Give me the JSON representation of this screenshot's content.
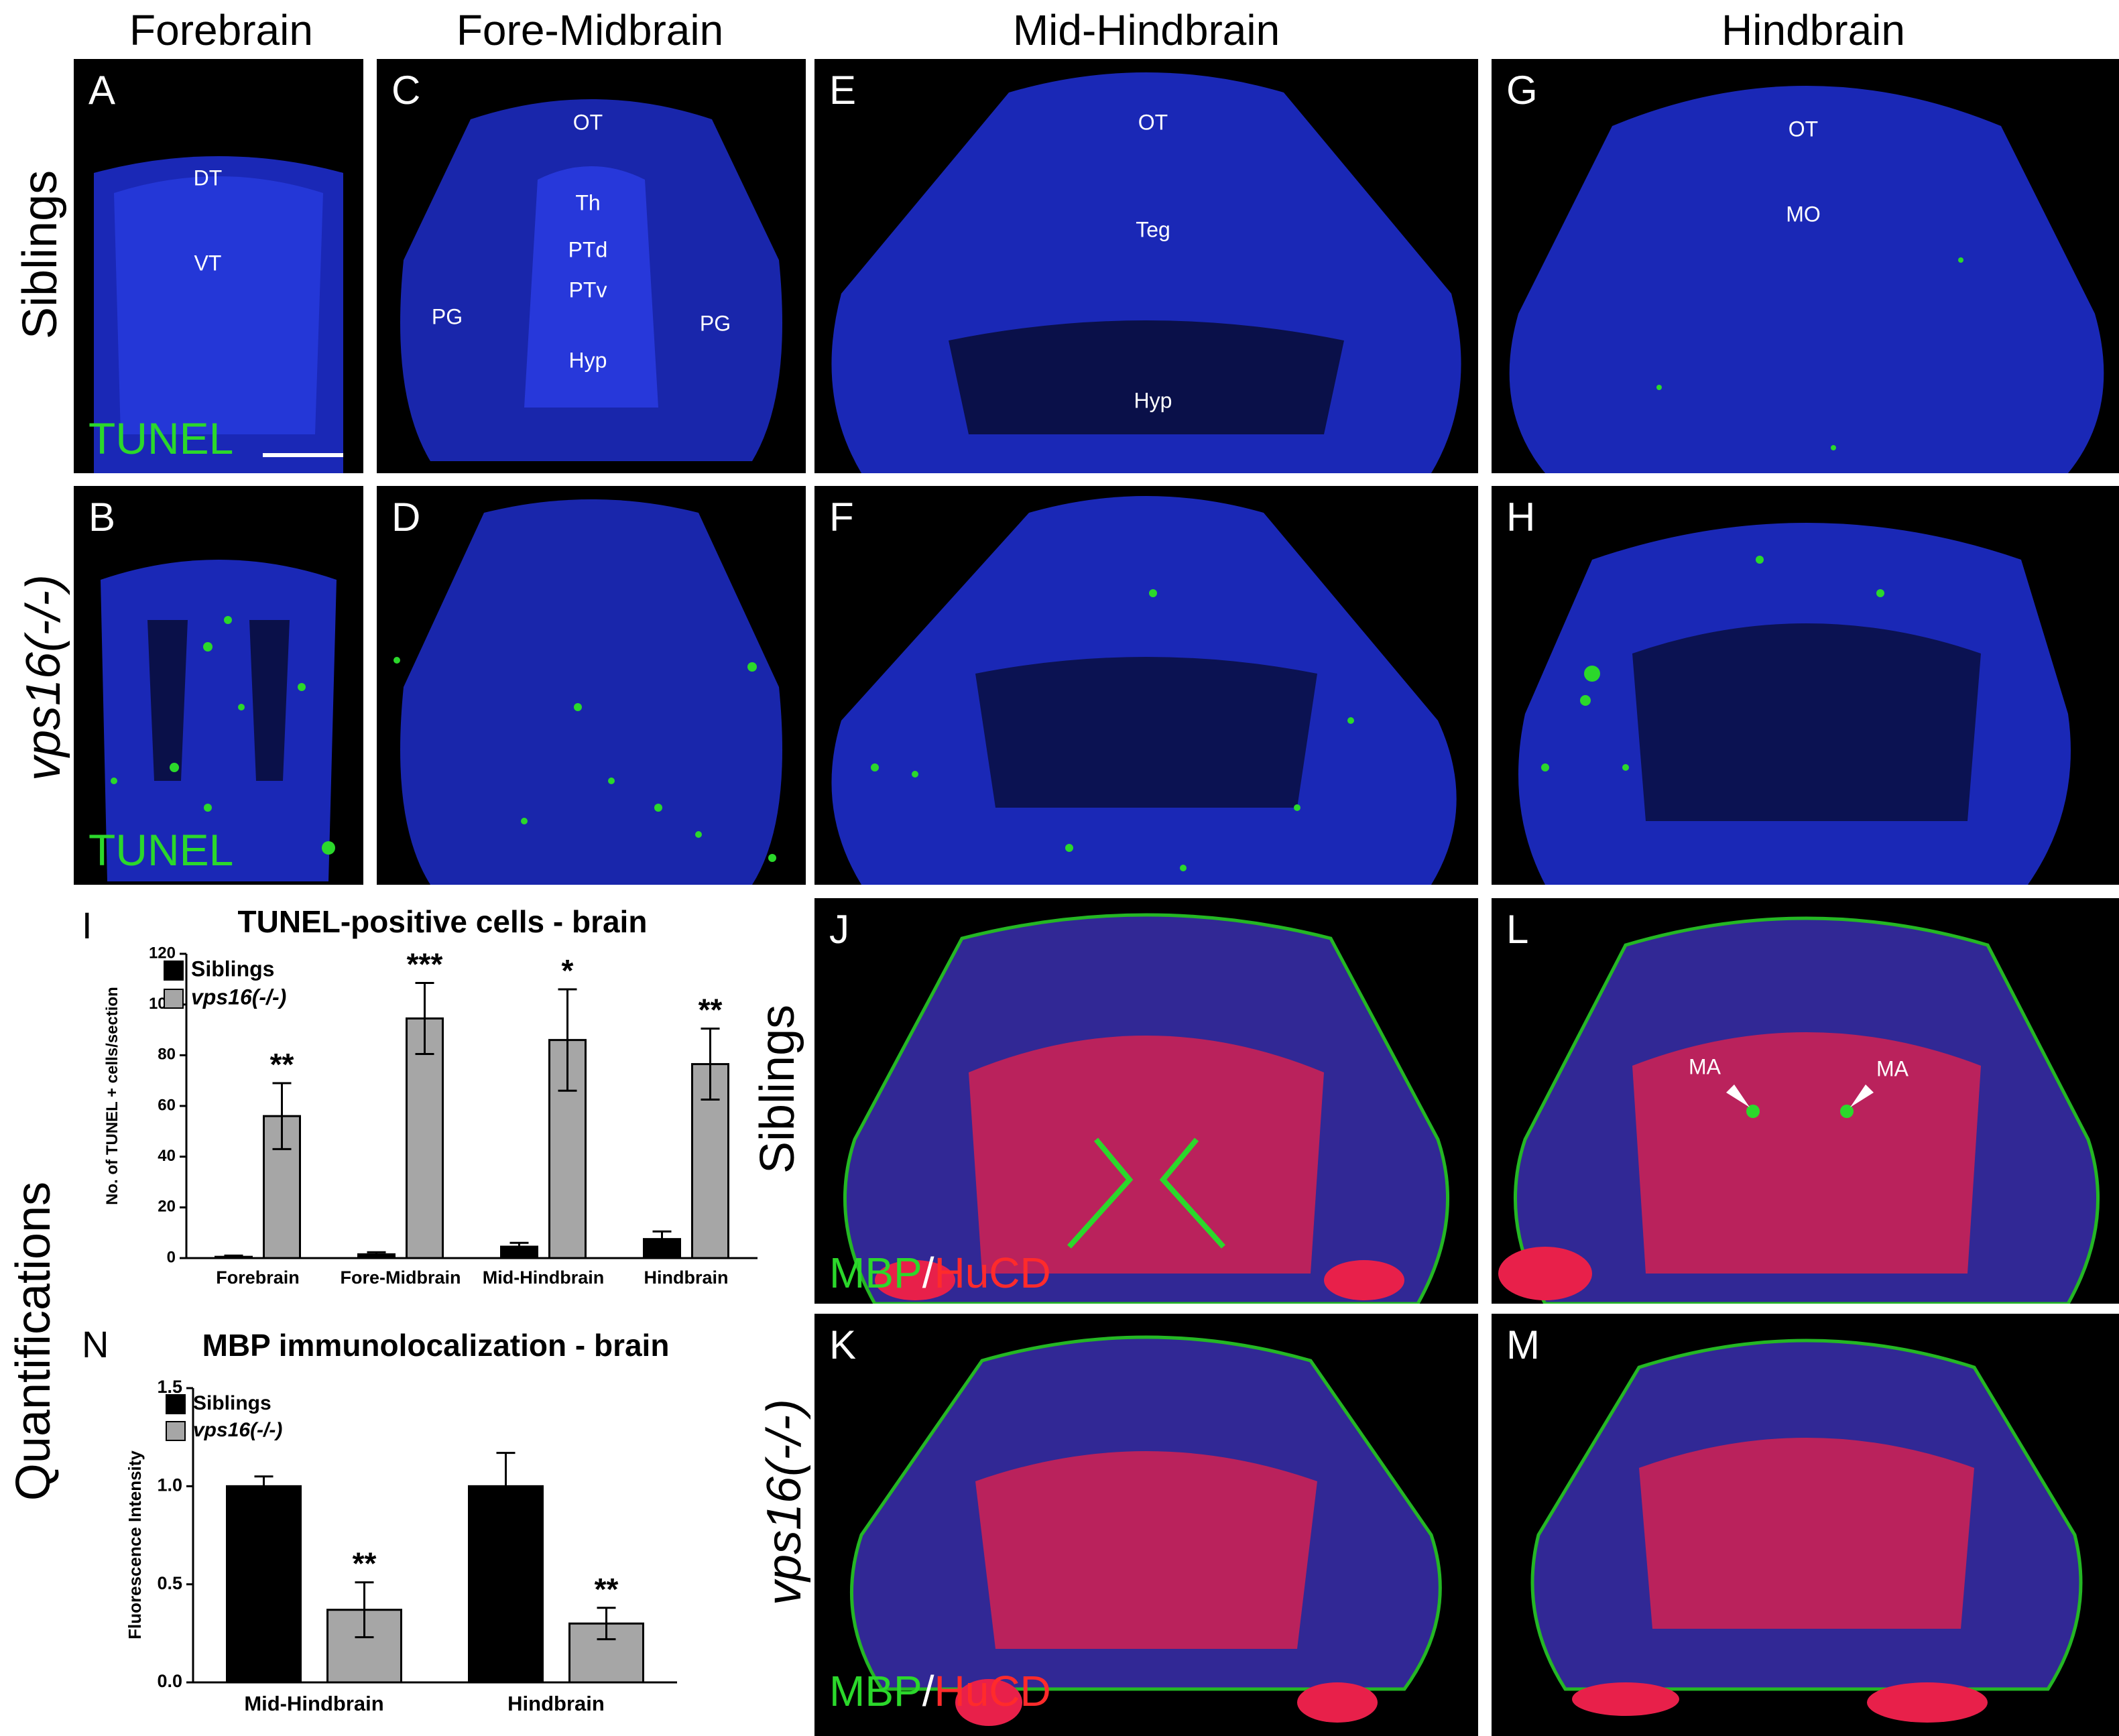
{
  "column_headers": [
    "Forebrain",
    "Fore-Midbrain",
    "Mid-Hindbrain",
    "Hindbrain"
  ],
  "row_labels": {
    "siblings": "Siblings",
    "mutant": "vps16(-/-)",
    "quantifications": "Quantifications"
  },
  "panels": {
    "A": {
      "label": "A",
      "regions": [
        "DT",
        "VT"
      ],
      "stain": "TUNEL"
    },
    "B": {
      "label": "B",
      "stain": "TUNEL"
    },
    "C": {
      "label": "C",
      "regions": [
        "OT",
        "Th",
        "PTd",
        "PTv",
        "PG",
        "PG",
        "Hyp"
      ]
    },
    "D": {
      "label": "D"
    },
    "E": {
      "label": "E",
      "regions": [
        "OT",
        "Teg",
        "Hyp"
      ]
    },
    "F": {
      "label": "F"
    },
    "G": {
      "label": "G",
      "regions": [
        "OT",
        "MO"
      ]
    },
    "H": {
      "label": "H"
    },
    "J": {
      "label": "J",
      "stain_green": "MBP",
      "stain_sep": "/",
      "stain_red": "HuCD"
    },
    "K": {
      "label": "K",
      "stain_green": "MBP",
      "stain_sep": "/",
      "stain_red": "HuCD"
    },
    "L": {
      "label": "L",
      "arrows": [
        "MA",
        "MA"
      ]
    },
    "M": {
      "label": "M"
    }
  },
  "chart_data": [
    {
      "panel": "I",
      "type": "bar",
      "title": "TUNEL-positive cells - brain",
      "ylabel": "No. of TUNEL + cells/section",
      "xlabel": "",
      "categories": [
        "Forebrain",
        "Fore-Midbrain",
        "Mid-Hindbrain",
        "Hindbrain"
      ],
      "ylim": [
        0,
        120
      ],
      "yticks": [
        "0",
        "20",
        "40",
        "60",
        "80",
        "100",
        "120"
      ],
      "legend": "top-left",
      "series": [
        {
          "name": "Siblings",
          "color": "#000000",
          "values": [
            0.5,
            1.5,
            4.5,
            7.5
          ],
          "errors": [
            0.5,
            0.8,
            1.5,
            3
          ]
        },
        {
          "name": "vps16(-/-)",
          "color": "#a6a6a6",
          "values": [
            56,
            94.5,
            86,
            76.5
          ],
          "errors": [
            13,
            14,
            20,
            14
          ]
        }
      ],
      "significance": [
        "**",
        "***",
        "*",
        "**"
      ]
    },
    {
      "panel": "N",
      "type": "bar",
      "title": "MBP immunolocalization - brain",
      "ylabel": "Fluorescence Intensity",
      "xlabel": "",
      "categories": [
        "Mid-Hindbrain",
        "Hindbrain"
      ],
      "ylim": [
        0,
        1.5
      ],
      "yticks": [
        "0.0",
        "0.5",
        "1.0",
        "1.5"
      ],
      "legend": "top-left",
      "series": [
        {
          "name": "Siblings",
          "color": "#000000",
          "values": [
            1.0,
            1.0
          ],
          "errors": [
            0.05,
            0.17
          ]
        },
        {
          "name": "vps16(-/-)",
          "color": "#a6a6a6",
          "values": [
            0.37,
            0.3
          ],
          "errors": [
            0.14,
            0.08
          ]
        }
      ],
      "significance": [
        "**",
        "**"
      ]
    }
  ],
  "colors": {
    "nuclei": "#1f2fd6",
    "tunel": "#2bd82b",
    "hucd": "#e8204a",
    "mbp": "#2bd82b"
  }
}
